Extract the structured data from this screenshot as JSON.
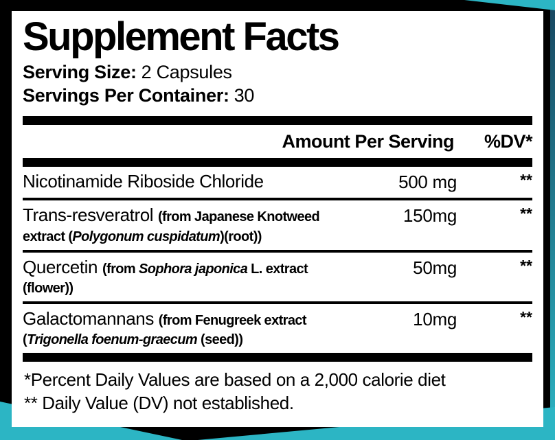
{
  "colors": {
    "background": "#000000",
    "panel": "#ffffff",
    "accent_teal": "#2cb5c4",
    "edge_blue": "#17465f",
    "text": "#000000"
  },
  "label": {
    "title": "Supplement Facts",
    "serving_size_label": "Serving Size:",
    "serving_size_value": "2 Capsules",
    "servings_label": "Servings Per Container:",
    "servings_value": "30",
    "header": {
      "amount": "Amount Per Serving",
      "dv": "%DV*"
    },
    "rows": [
      {
        "name_parts": [
          {
            "text": "Nicotinamide Riboside Chloride",
            "style": "main"
          }
        ],
        "amount": "500 mg",
        "dv": "**"
      },
      {
        "name_parts": [
          {
            "text": "Trans-resveratrol ",
            "style": "main"
          },
          {
            "text": "(from Japanese Knotweed extract (",
            "style": "cond"
          },
          {
            "text": "Polygonum cuspidatum",
            "style": "cond-italic"
          },
          {
            "text": ")(root))",
            "style": "cond"
          }
        ],
        "amount": "150mg",
        "dv": "**"
      },
      {
        "name_parts": [
          {
            "text": "Quercetin ",
            "style": "main"
          },
          {
            "text": "(from ",
            "style": "cond"
          },
          {
            "text": "Sophora japonica",
            "style": "cond-italic"
          },
          {
            "text": " L. extract (flower))",
            "style": "cond"
          }
        ],
        "amount": "50mg",
        "dv": "**"
      },
      {
        "name_parts": [
          {
            "text": "Galactomannans ",
            "style": "main"
          },
          {
            "text": "(from Fenugreek extract (",
            "style": "cond"
          },
          {
            "text": "Trigonella foenum-graecum",
            "style": "cond-italic"
          },
          {
            "text": " (seed))",
            "style": "cond"
          }
        ],
        "amount": "10mg",
        "dv": "**"
      }
    ],
    "footnote_line1": "*Percent Daily Values are based on a 2,000 calorie diet",
    "footnote_line2": "** Daily Value (DV) not established."
  }
}
